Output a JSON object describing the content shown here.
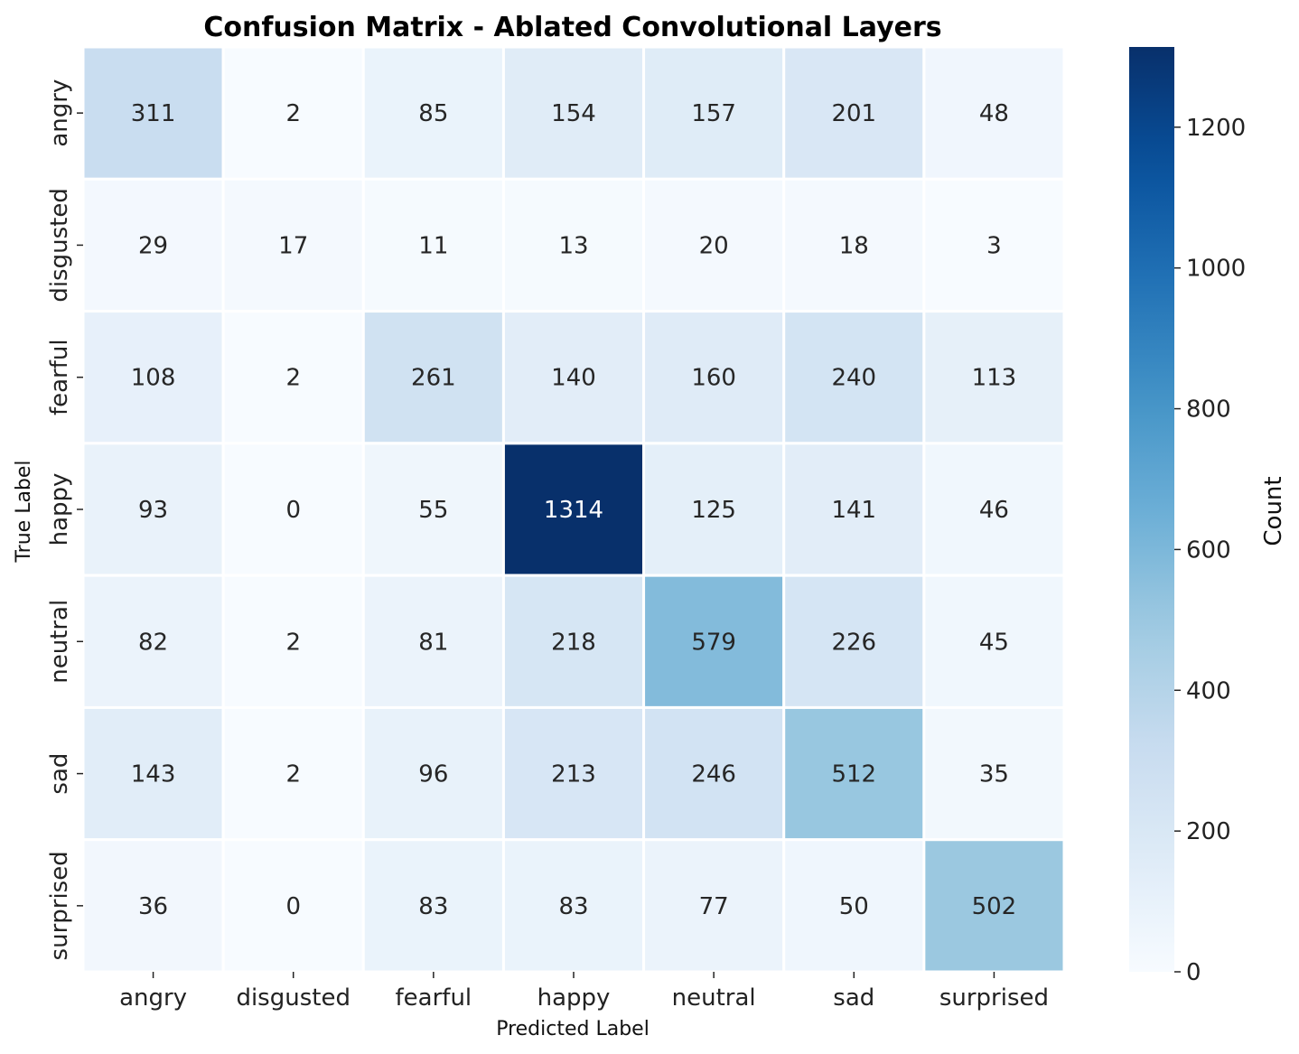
{
  "chart_data": {
    "type": "heatmap",
    "title": "Confusion Matrix - Ablated Convolutional Layers",
    "xlabel": "Predicted Label",
    "ylabel": "True Label",
    "x_categories": [
      "angry",
      "disgusted",
      "fearful",
      "happy",
      "neutral",
      "sad",
      "surprised"
    ],
    "y_categories": [
      "angry",
      "disgusted",
      "fearful",
      "happy",
      "neutral",
      "sad",
      "surprised"
    ],
    "values": [
      [
        311,
        2,
        85,
        154,
        157,
        201,
        48
      ],
      [
        29,
        17,
        11,
        13,
        20,
        18,
        3
      ],
      [
        108,
        2,
        261,
        140,
        160,
        240,
        113
      ],
      [
        93,
        0,
        55,
        1314,
        125,
        141,
        46
      ],
      [
        82,
        2,
        81,
        218,
        579,
        226,
        45
      ],
      [
        143,
        2,
        96,
        213,
        246,
        512,
        35
      ],
      [
        36,
        0,
        83,
        83,
        77,
        50,
        502
      ]
    ],
    "colormap": "Blues",
    "colorbar": {
      "label": "Count",
      "min": 0,
      "max": 1314,
      "ticks": [
        0,
        200,
        400,
        600,
        800,
        1000,
        1200
      ]
    },
    "grid_line_color": "#ffffff"
  }
}
